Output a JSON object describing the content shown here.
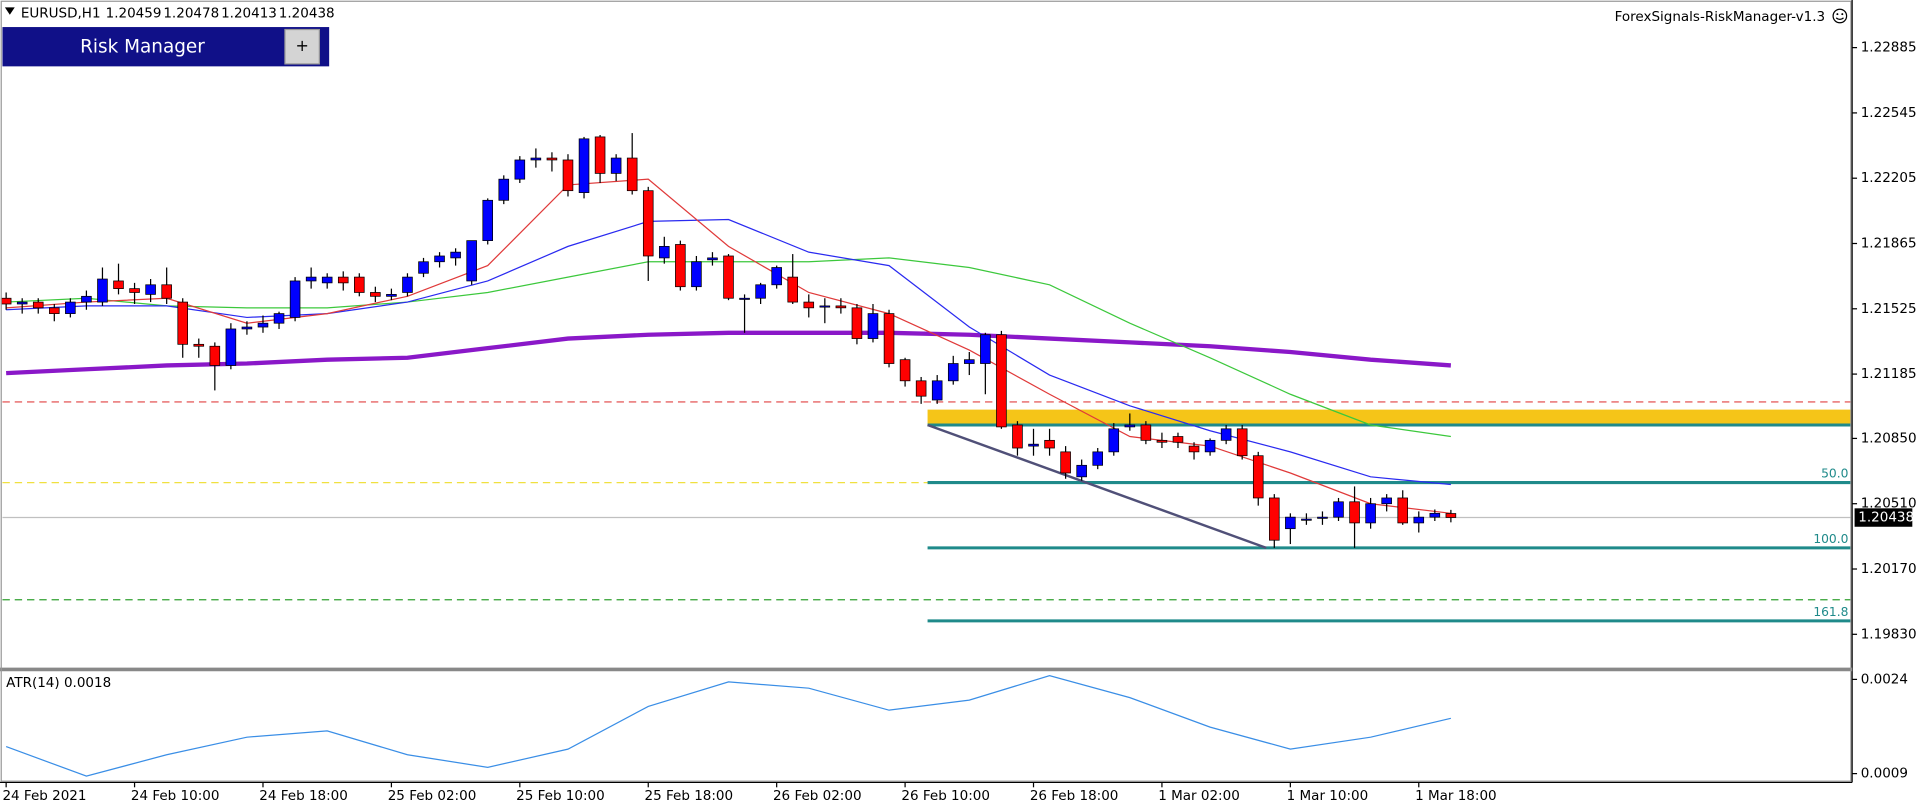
{
  "chart_data": {
    "type": "candlestick",
    "symbol": "EURUSD,H1",
    "badge": "ForexSignals-RiskManager-v1.3",
    "panel": {
      "title": "Risk Manager",
      "button": "+"
    },
    "categories": [
      "24 Feb 2021",
      null,
      null,
      null,
      null,
      null,
      null,
      null,
      "24 Feb 10:00",
      null,
      null,
      null,
      null,
      null,
      null,
      null,
      "24 Feb 18:00",
      null,
      null,
      null,
      null,
      null,
      null,
      null,
      "25 Feb 02:00",
      null,
      null,
      null,
      null,
      null,
      null,
      null,
      "25 Feb 10:00",
      null,
      null,
      null,
      null,
      null,
      null,
      null,
      "25 Feb 18:00",
      null,
      null,
      null,
      null,
      null,
      null,
      null,
      "26 Feb 02:00",
      null,
      null,
      null,
      null,
      null,
      null,
      null,
      "26 Feb 10:00",
      null,
      null,
      null,
      null,
      null,
      null,
      null,
      "26 Feb 18:00",
      null,
      null,
      null,
      null,
      null,
      null,
      null,
      "1 Mar 02:00",
      null,
      null,
      null,
      null,
      null,
      null,
      null,
      "1 Mar 10:00",
      null,
      null,
      null,
      null,
      null,
      null,
      null,
      "1 Mar 18:00",
      null,
      null
    ],
    "candles": [
      [
        1.2158,
        1.2161,
        1.2152,
        1.2155
      ],
      [
        1.2155,
        1.2158,
        1.215,
        1.2156
      ],
      [
        1.2156,
        1.2158,
        1.215,
        1.2153
      ],
      [
        1.2153,
        1.2155,
        1.2146,
        1.215
      ],
      [
        1.215,
        1.2158,
        1.2148,
        1.2156
      ],
      [
        1.2156,
        1.2162,
        1.2152,
        1.2159
      ],
      [
        1.2156,
        1.2174,
        1.2154,
        1.2168
      ],
      [
        1.2167,
        1.2176,
        1.216,
        1.2163
      ],
      [
        1.2163,
        1.2166,
        1.2155,
        1.2161
      ],
      [
        1.216,
        1.2168,
        1.2156,
        1.2165
      ],
      [
        1.2165,
        1.2174,
        1.2155,
        1.2158
      ],
      [
        1.2156,
        1.2158,
        1.2127,
        1.2134
      ],
      [
        1.2134,
        1.2137,
        1.2127,
        1.2133
      ],
      [
        1.2133,
        1.2135,
        1.211,
        1.2123
      ],
      [
        1.2123,
        1.2145,
        1.2121,
        1.2142
      ],
      [
        1.2142,
        1.2146,
        1.2139,
        1.2143
      ],
      [
        1.2143,
        1.2149,
        1.214,
        1.2145
      ],
      [
        1.2145,
        1.2151,
        1.2142,
        1.215
      ],
      [
        1.2148,
        1.2169,
        1.2146,
        1.2167
      ],
      [
        1.2167,
        1.2174,
        1.2163,
        1.2169
      ],
      [
        1.2166,
        1.2171,
        1.2163,
        1.2169
      ],
      [
        1.2169,
        1.2172,
        1.2162,
        1.2166
      ],
      [
        1.2169,
        1.2171,
        1.2159,
        1.2161
      ],
      [
        1.2161,
        1.2164,
        1.2156,
        1.2159
      ],
      [
        1.2159,
        1.2163,
        1.2157,
        1.216
      ],
      [
        1.2161,
        1.2171,
        1.2159,
        1.2169
      ],
      [
        1.2171,
        1.2179,
        1.2169,
        1.2177
      ],
      [
        1.2177,
        1.2182,
        1.2174,
        1.218
      ],
      [
        1.2179,
        1.2184,
        1.2175,
        1.2182
      ],
      [
        1.2167,
        1.2188,
        1.2165,
        1.2188
      ],
      [
        1.2188,
        1.221,
        1.2186,
        1.2209
      ],
      [
        1.2209,
        1.2222,
        1.2207,
        1.222
      ],
      [
        1.222,
        1.2232,
        1.2218,
        1.223
      ],
      [
        1.223,
        1.2236,
        1.2226,
        1.2231
      ],
      [
        1.2231,
        1.2234,
        1.2224,
        1.223
      ],
      [
        1.223,
        1.2233,
        1.2211,
        1.2214
      ],
      [
        1.2213,
        1.2242,
        1.221,
        1.2241
      ],
      [
        1.2242,
        1.2243,
        1.2218,
        1.2223
      ],
      [
        1.2223,
        1.2233,
        1.2219,
        1.2231
      ],
      [
        1.2231,
        1.2244,
        1.2212,
        1.2214
      ],
      [
        1.2214,
        1.2216,
        1.2167,
        1.218
      ],
      [
        1.2179,
        1.219,
        1.2176,
        1.2185
      ],
      [
        1.2186,
        1.2188,
        1.2162,
        1.2164
      ],
      [
        1.2164,
        1.218,
        1.2162,
        1.2177
      ],
      [
        1.2178,
        1.2182,
        1.2175,
        1.2179
      ],
      [
        1.218,
        1.2181,
        1.2157,
        1.2158
      ],
      [
        1.2158,
        1.216,
        1.214,
        1.2158
      ],
      [
        1.2158,
        1.2166,
        1.2155,
        1.2165
      ],
      [
        1.2165,
        1.2175,
        1.2163,
        1.2174
      ],
      [
        1.2169,
        1.2181,
        1.2155,
        1.2156
      ],
      [
        1.2156,
        1.216,
        1.2148,
        1.2153
      ],
      [
        1.2154,
        1.2158,
        1.2145,
        1.2154
      ],
      [
        1.2154,
        1.2158,
        1.215,
        1.2153
      ],
      [
        1.2153,
        1.2155,
        1.2134,
        1.2137
      ],
      [
        1.2137,
        1.2155,
        1.2135,
        1.215
      ],
      [
        1.215,
        1.2152,
        1.2122,
        1.2124
      ],
      [
        1.2126,
        1.2127,
        1.2112,
        1.2115
      ],
      [
        1.2115,
        1.2117,
        1.2103,
        1.2107
      ],
      [
        1.2105,
        1.2118,
        1.2103,
        1.2115
      ],
      [
        1.2115,
        1.2128,
        1.2113,
        1.2124
      ],
      [
        1.2124,
        1.213,
        1.2118,
        1.2126
      ],
      [
        1.2124,
        1.214,
        1.2108,
        1.2139
      ],
      [
        1.2139,
        1.2141,
        1.209,
        1.2091
      ],
      [
        1.2092,
        1.2094,
        1.2076,
        1.208
      ],
      [
        1.2081,
        1.209,
        1.2076,
        1.2082
      ],
      [
        1.2084,
        1.209,
        1.2076,
        1.208
      ],
      [
        1.2078,
        1.2081,
        1.2064,
        1.2067
      ],
      [
        1.2065,
        1.2074,
        1.2063,
        1.2071
      ],
      [
        1.2071,
        1.208,
        1.2069,
        1.2078
      ],
      [
        1.2078,
        1.2093,
        1.2076,
        1.209
      ],
      [
        1.2091,
        1.2098,
        1.2089,
        1.2092
      ],
      [
        1.2092,
        1.2094,
        1.2082,
        1.2084
      ],
      [
        1.2084,
        1.2088,
        1.208,
        1.2083
      ],
      [
        1.2086,
        1.2088,
        1.208,
        1.2083
      ],
      [
        1.2081,
        1.2083,
        1.2074,
        1.2078
      ],
      [
        1.2078,
        1.2085,
        1.2076,
        1.2084
      ],
      [
        1.2084,
        1.2092,
        1.2082,
        1.209
      ],
      [
        1.209,
        1.2092,
        1.2074,
        1.2076
      ],
      [
        1.2076,
        1.2078,
        1.205,
        1.2054
      ],
      [
        1.2054,
        1.2056,
        1.2028,
        1.2032
      ],
      [
        1.2038,
        1.2046,
        1.203,
        1.2044
      ],
      [
        1.2043,
        1.2046,
        1.204,
        1.2043
      ],
      [
        1.2044,
        1.2047,
        1.204,
        1.2044
      ],
      [
        1.2044,
        1.2054,
        1.2042,
        1.2052
      ],
      [
        1.2052,
        1.206,
        1.2028,
        1.2041
      ],
      [
        1.2041,
        1.2054,
        1.2038,
        1.2051
      ],
      [
        1.2051,
        1.2056,
        1.2047,
        1.2054
      ],
      [
        1.2054,
        1.2058,
        1.204,
        1.2041
      ],
      [
        1.2041,
        1.2047,
        1.2036,
        1.2044
      ],
      [
        1.2044,
        1.2048,
        1.2042,
        1.2046
      ],
      [
        1.20459,
        1.20478,
        1.20413,
        1.20438
      ]
    ],
    "up_color": "#0000ff",
    "down_color": "#ff0000",
    "series": [
      {
        "color": "#8a18c8",
        "width": 3.5,
        "x": [
          0,
          5,
          10,
          15,
          20,
          25,
          30,
          35,
          40,
          45,
          50,
          55,
          60,
          65,
          70,
          75,
          80,
          85,
          90
        ],
        "values": [
          1.2119,
          1.2121,
          1.2123,
          1.2124,
          1.2126,
          1.2127,
          1.2132,
          1.2137,
          1.2139,
          1.214,
          1.214,
          1.214,
          1.2139,
          1.2137,
          1.2135,
          1.2133,
          1.213,
          1.2126,
          1.2123
        ]
      },
      {
        "color": "#3cc83c",
        "width": 1,
        "x": [
          0,
          5,
          10,
          15,
          20,
          25,
          30,
          35,
          40,
          45,
          50,
          55,
          60,
          65,
          70,
          75,
          80,
          85,
          90
        ],
        "values": [
          1.2156,
          1.2158,
          1.2154,
          1.2153,
          1.2153,
          1.2156,
          1.2161,
          1.2169,
          1.2177,
          1.2177,
          1.2177,
          1.2179,
          1.2174,
          1.2165,
          1.2145,
          1.2127,
          1.2108,
          1.2092,
          1.2086
        ]
      },
      {
        "color": "#2a2af0",
        "width": 1,
        "x": [
          0,
          5,
          10,
          15,
          20,
          25,
          30,
          35,
          40,
          45,
          50,
          55,
          60,
          65,
          70,
          75,
          80,
          85,
          90
        ],
        "values": [
          1.2152,
          1.2154,
          1.2154,
          1.2148,
          1.215,
          1.2156,
          1.2167,
          1.2185,
          1.2198,
          1.2199,
          1.2182,
          1.2175,
          1.2143,
          1.2118,
          1.2102,
          1.2089,
          1.2078,
          1.2065,
          1.2061
        ]
      },
      {
        "color": "#e03a3a",
        "width": 1,
        "x": [
          0,
          5,
          10,
          15,
          20,
          25,
          30,
          35,
          40,
          45,
          50,
          55,
          60,
          65,
          70,
          75,
          80,
          85,
          90
        ],
        "values": [
          1.2153,
          1.2156,
          1.2158,
          1.2145,
          1.215,
          1.2159,
          1.2175,
          1.2217,
          1.222,
          1.2185,
          1.2161,
          1.215,
          1.2131,
          1.2108,
          1.2086,
          1.2081,
          1.2067,
          1.2051,
          1.2046
        ]
      }
    ],
    "hlines": [
      {
        "price": 1.2104,
        "color": "#e04040"
      },
      {
        "price": 1.2062,
        "color": "#f0e040"
      },
      {
        "price": 1.2001,
        "color": "#30a030"
      }
    ],
    "band": [
      1.2092,
      1.21
    ],
    "fib": {
      "start": 57.4,
      "zero": 1.2092,
      "levels": [
        50,
        100,
        161.8
      ],
      "value_labels": [
        "50.0",
        "100.0",
        "161.8"
      ],
      "prices": [
        1.2062,
        1.2028,
        1.199
      ]
    },
    "trendline": {
      "x": [
        57.4,
        78.5
      ],
      "values": [
        1.2092,
        1.2028
      ]
    },
    "ylim": [
      1.1966,
      1.2312
    ],
    "yticks": [
      1.22885,
      1.22545,
      1.22205,
      1.21865,
      1.21525,
      1.21185,
      {
        "value": 1.2085,
        "label": "1.20850"
      },
      {
        "value": 1.2051,
        "label": "1.20510"
      },
      {
        "value": 1.2017,
        "label": "1.20170"
      },
      {
        "value": 1.1983,
        "label": "1.19830"
      }
    ],
    "indicator": {
      "type": "line",
      "title": "ATR(14) 0.0018",
      "color": "#3a8ee6",
      "x": [
        0,
        5,
        10,
        15,
        20,
        25,
        30,
        35,
        40,
        45,
        50,
        55,
        60,
        65,
        70,
        75,
        80,
        85,
        90
      ],
      "values": [
        0.00133,
        0.00086,
        0.0012,
        0.00148,
        0.00158,
        0.0012,
        0.001,
        0.00129,
        0.00197,
        0.00236,
        0.00226,
        0.00191,
        0.00207,
        0.00246,
        0.00211,
        0.00164,
        0.00129,
        0.00148,
        0.00178
      ],
      "ylim": [
        0.00076,
        0.00252
      ],
      "yticks": [
        0.0024,
        0.0009
      ]
    }
  }
}
